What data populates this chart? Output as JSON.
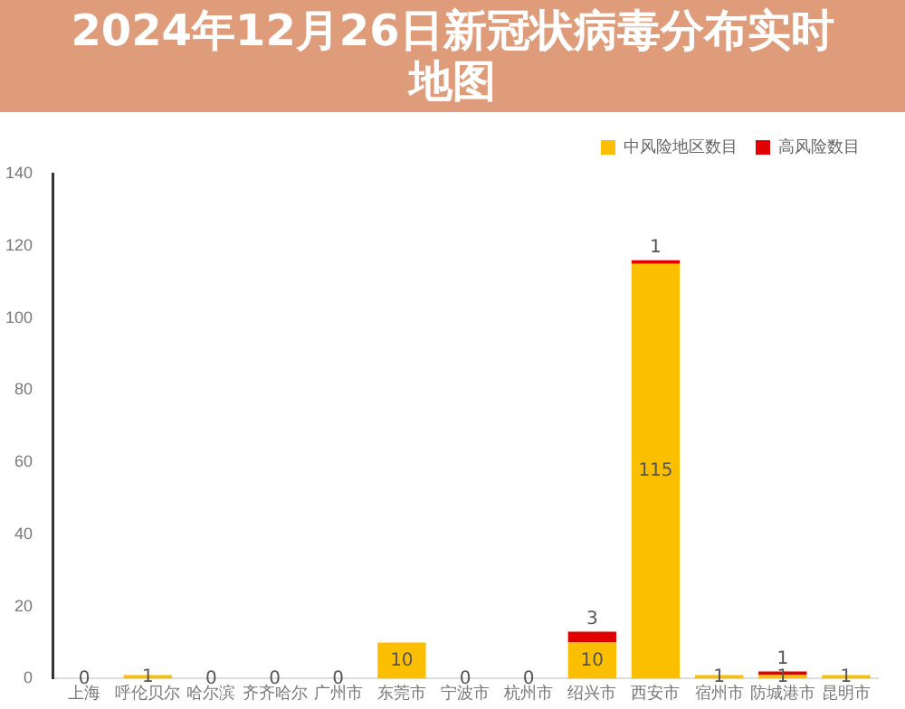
{
  "chart_data": {
    "type": "bar",
    "title": "2024年12月26日新冠状病毒分布实时地图",
    "stacked": true,
    "categories": [
      "上海",
      "呼伦贝尔",
      "哈尔滨",
      "齐齐哈尔",
      "广州市",
      "东莞市",
      "宁波市",
      "杭州市",
      "绍兴市",
      "西安市",
      "宿州市",
      "防城港市",
      "昆明市"
    ],
    "series": [
      {
        "name": "中风险地区数目",
        "color": "#fbbf00",
        "values": [
          0,
          1,
          0,
          0,
          0,
          10,
          0,
          0,
          10,
          115,
          1,
          1,
          1
        ],
        "value_labels": [
          "0",
          "1",
          "0",
          "0",
          "0",
          "10",
          "0",
          "0",
          "10",
          "115",
          "1",
          "1",
          "1"
        ]
      },
      {
        "name": "高风险数目",
        "color": "#e00000",
        "values": [
          0,
          0,
          0,
          0,
          0,
          0,
          0,
          0,
          3,
          1,
          0,
          1,
          0
        ],
        "value_labels": [
          null,
          null,
          null,
          null,
          null,
          null,
          null,
          null,
          "3",
          "1",
          null,
          "1",
          null
        ]
      }
    ],
    "ylim": [
      0,
      140
    ],
    "yticks": [
      0,
      20,
      40,
      60,
      80,
      100,
      120,
      140
    ],
    "grid": false,
    "legend": "top right"
  }
}
